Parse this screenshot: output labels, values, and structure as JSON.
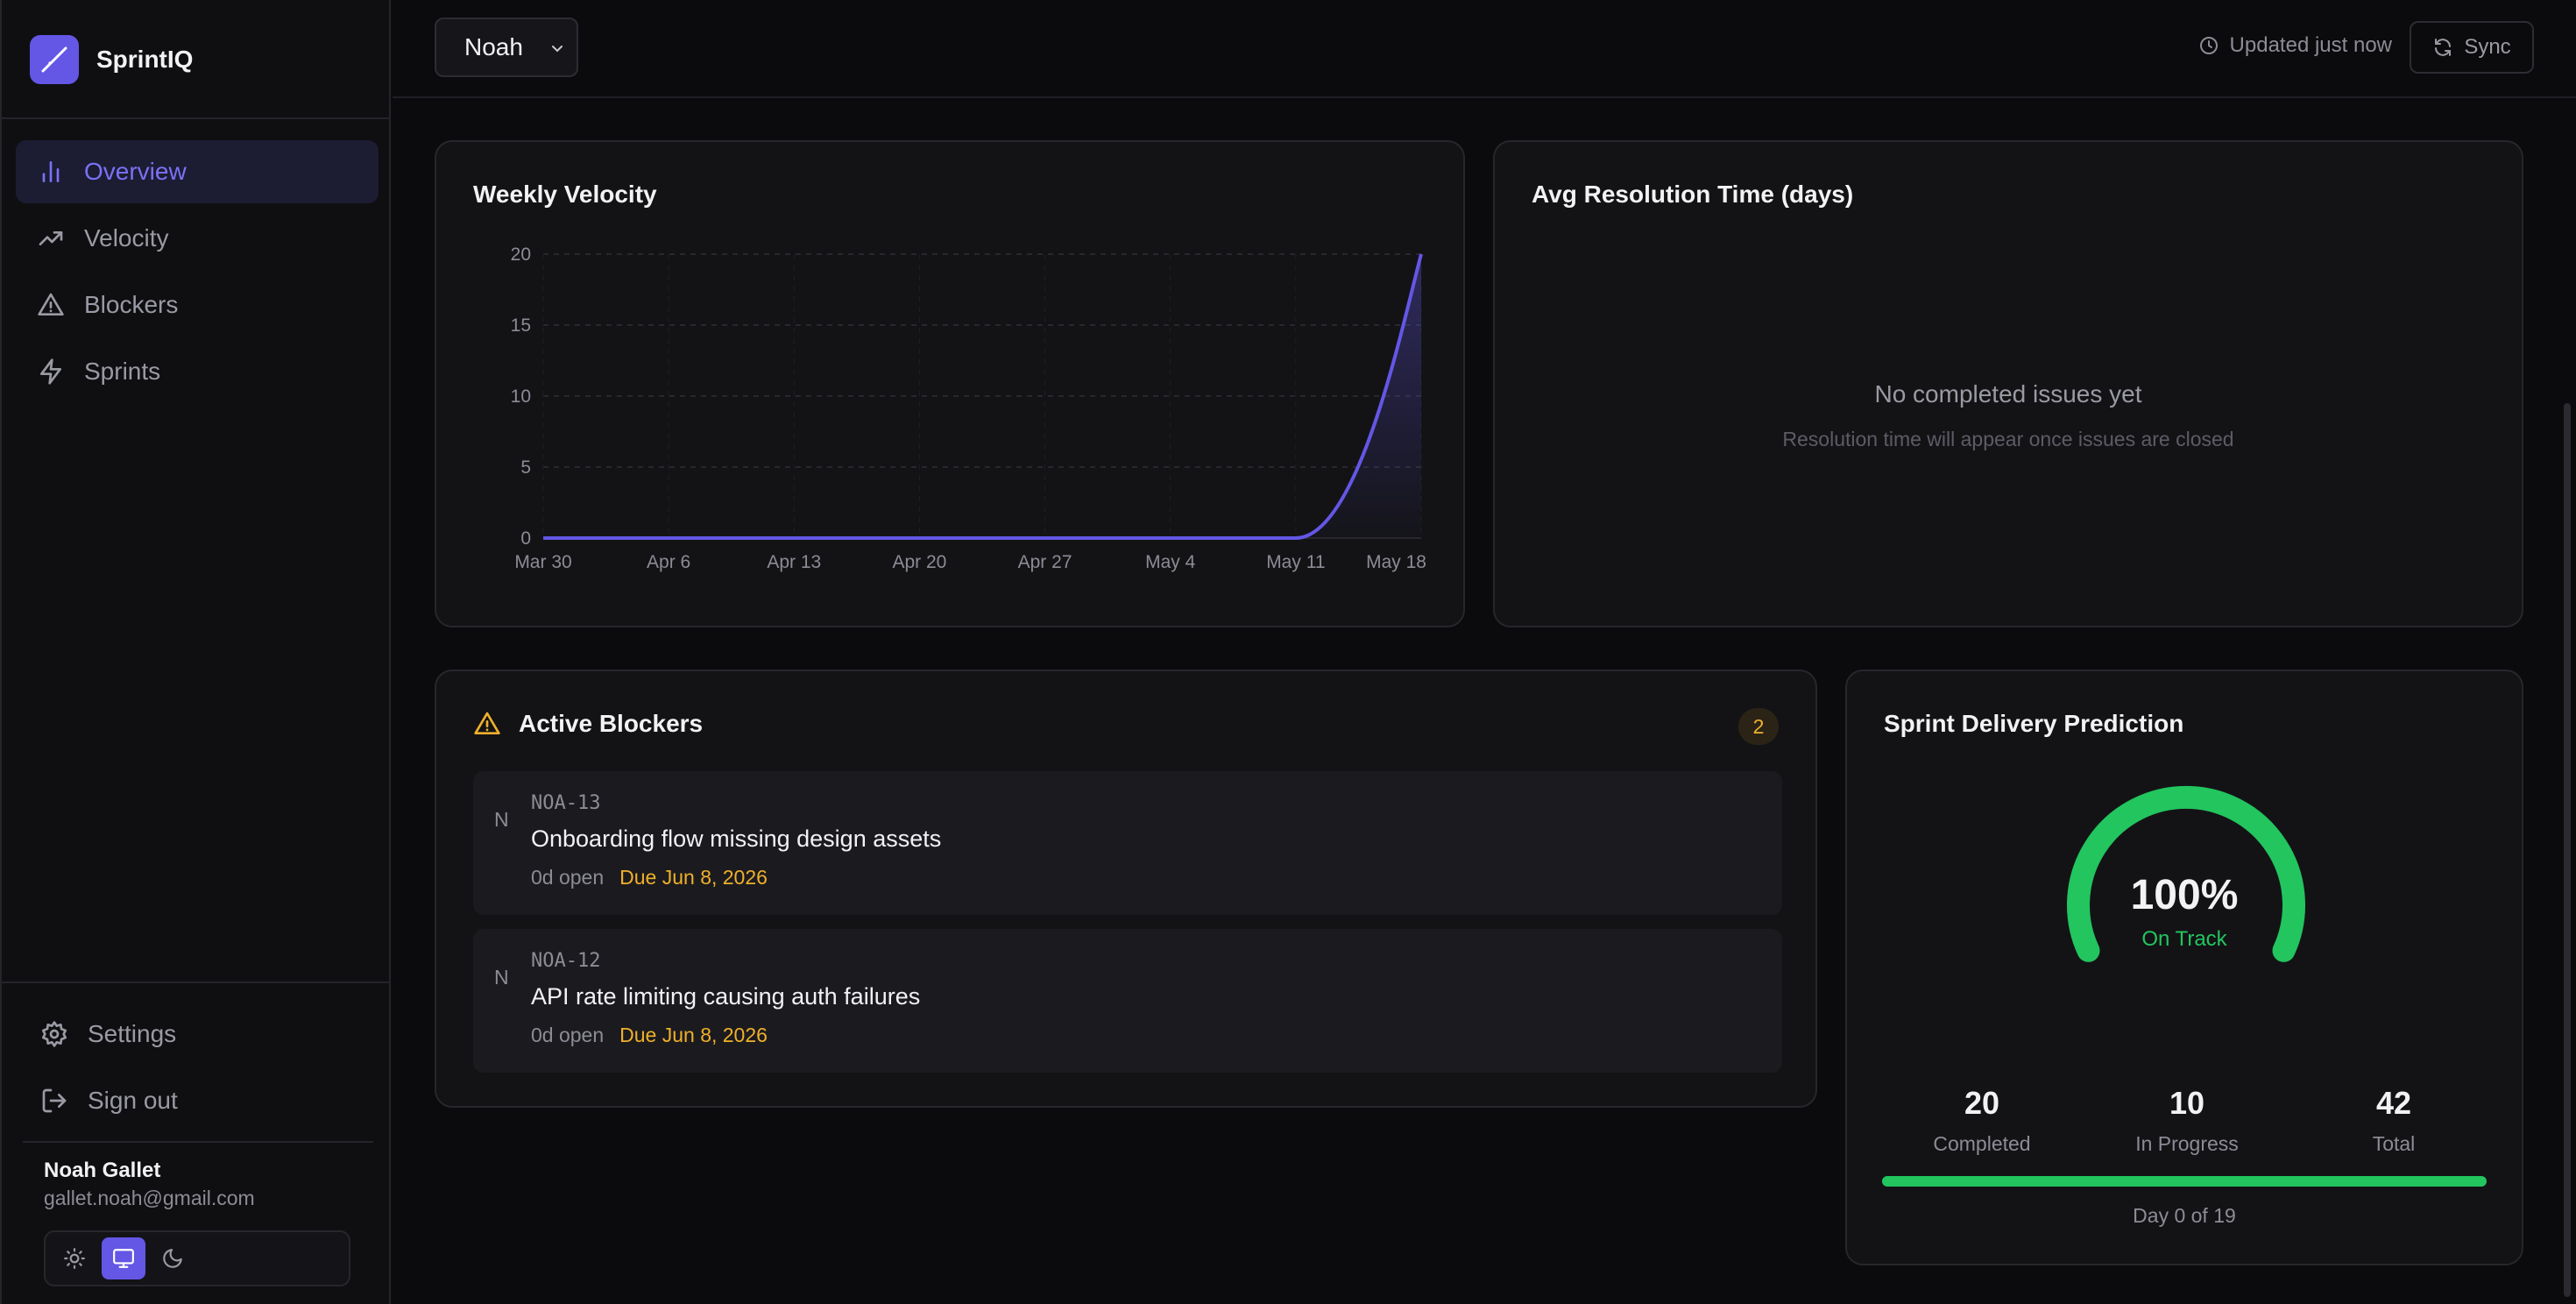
{
  "app": {
    "name": "SprintIQ"
  },
  "sidebar": {
    "items": [
      {
        "label": "Overview",
        "icon": "bar-chart-icon",
        "active": true
      },
      {
        "label": "Velocity",
        "icon": "trending-up-icon",
        "active": false
      },
      {
        "label": "Blockers",
        "icon": "alert-triangle-icon",
        "active": false
      },
      {
        "label": "Sprints",
        "icon": "zap-icon",
        "active": false
      }
    ],
    "footer_items": [
      {
        "label": "Settings",
        "icon": "gear-icon"
      },
      {
        "label": "Sign out",
        "icon": "sign-out-icon"
      }
    ],
    "user": {
      "name": "Noah Gallet",
      "email": "gallet.noah@gmail.com"
    },
    "theme": {
      "options": [
        "sun-icon",
        "monitor-icon",
        "moon-icon"
      ],
      "selected": "monitor-icon"
    }
  },
  "header": {
    "selected_user": "Noah",
    "updated_text": "Updated just now",
    "sync_label": "Sync"
  },
  "velocity": {
    "title": "Weekly Velocity",
    "chart_data": {
      "type": "area",
      "categories": [
        "Mar 30",
        "Apr 6",
        "Apr 13",
        "Apr 20",
        "Apr 27",
        "May 4",
        "May 11",
        "May 18"
      ],
      "series": [
        {
          "values": [
            0,
            0,
            0,
            0,
            0,
            0,
            0,
            20
          ]
        }
      ],
      "yticks": [
        0,
        5,
        10,
        15,
        20
      ],
      "ylim": [
        0,
        20
      ],
      "grid": true,
      "color": "#6457e6"
    }
  },
  "resolution": {
    "title": "Avg Resolution Time (days)",
    "empty_title": "No completed issues yet",
    "empty_subtitle": "Resolution time will appear once issues are closed"
  },
  "blockers": {
    "title": "Active Blockers",
    "count": "2",
    "items": [
      {
        "avatar": "N",
        "id": "NOA-13",
        "title": "Onboarding flow missing design assets",
        "open": "0d open",
        "due": "Due Jun 8, 2026"
      },
      {
        "avatar": "N",
        "id": "NOA-12",
        "title": "API rate limiting causing auth failures",
        "open": "0d open",
        "due": "Due Jun 8, 2026"
      }
    ]
  },
  "prediction": {
    "title": "Sprint Delivery Prediction",
    "percent_value": 100,
    "percent": "100%",
    "status": "On Track",
    "stats": [
      {
        "value": "20",
        "label": "Completed"
      },
      {
        "value": "10",
        "label": "In Progress"
      },
      {
        "value": "42",
        "label": "Total"
      }
    ],
    "progress": 1.0,
    "day_label": "Day 0 of 19",
    "color": "#22c55e"
  }
}
